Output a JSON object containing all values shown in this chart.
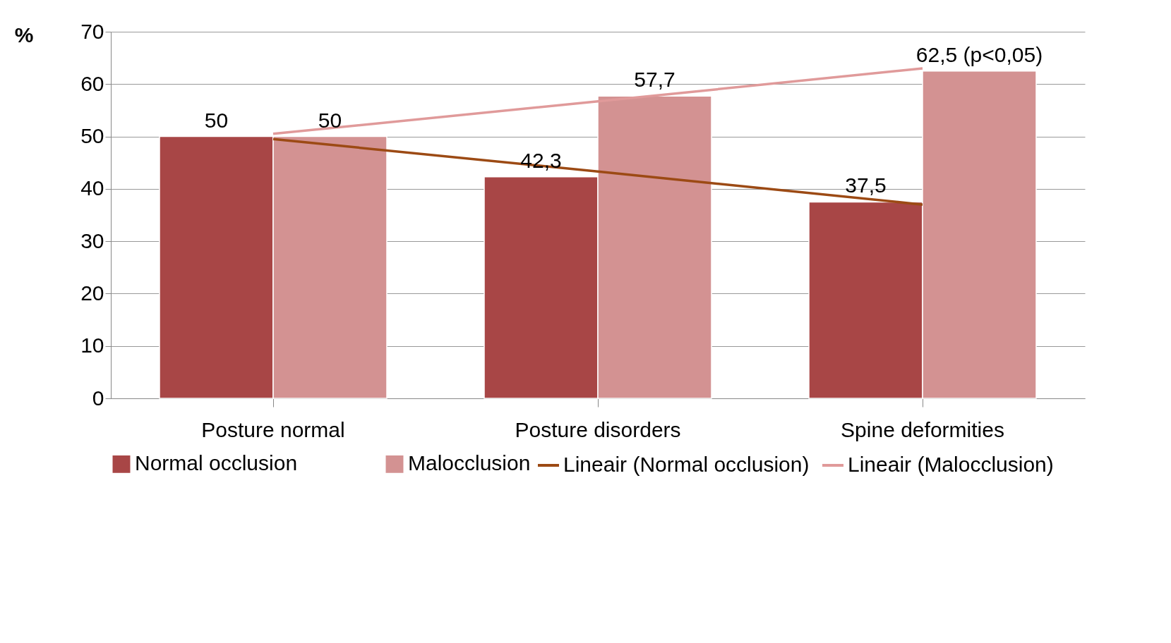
{
  "chart_data": {
    "type": "bar",
    "ylabel": "%",
    "categories": [
      "Posture normal",
      "Posture disorders",
      "Spine deformities"
    ],
    "series": [
      {
        "name": "Normal occlusion",
        "color": "#a84646",
        "values": [
          50,
          42.3,
          37.5
        ],
        "value_labels": [
          "50",
          "42,3",
          "37,5"
        ]
      },
      {
        "name": "Malocclusion",
        "color": "#d39292",
        "values": [
          50,
          57.7,
          62.5
        ],
        "value_labels": [
          "50",
          "57,7",
          "62,5 (p<0,05)"
        ]
      },
      {
        "name": "Lineair (Normal occlusion)",
        "type": "line",
        "color": "#9c4a14",
        "values": [
          49.5,
          43.3,
          37.0
        ]
      },
      {
        "name": "Lineair (Malocclusion)",
        "type": "line",
        "color": "#e09a9a",
        "values": [
          50.5,
          56.7,
          63.0
        ]
      }
    ],
    "ylim": [
      0,
      70
    ],
    "yticks": [
      0,
      10,
      20,
      30,
      40,
      50,
      60,
      70
    ],
    "grid": "y",
    "legend": "bottom"
  }
}
